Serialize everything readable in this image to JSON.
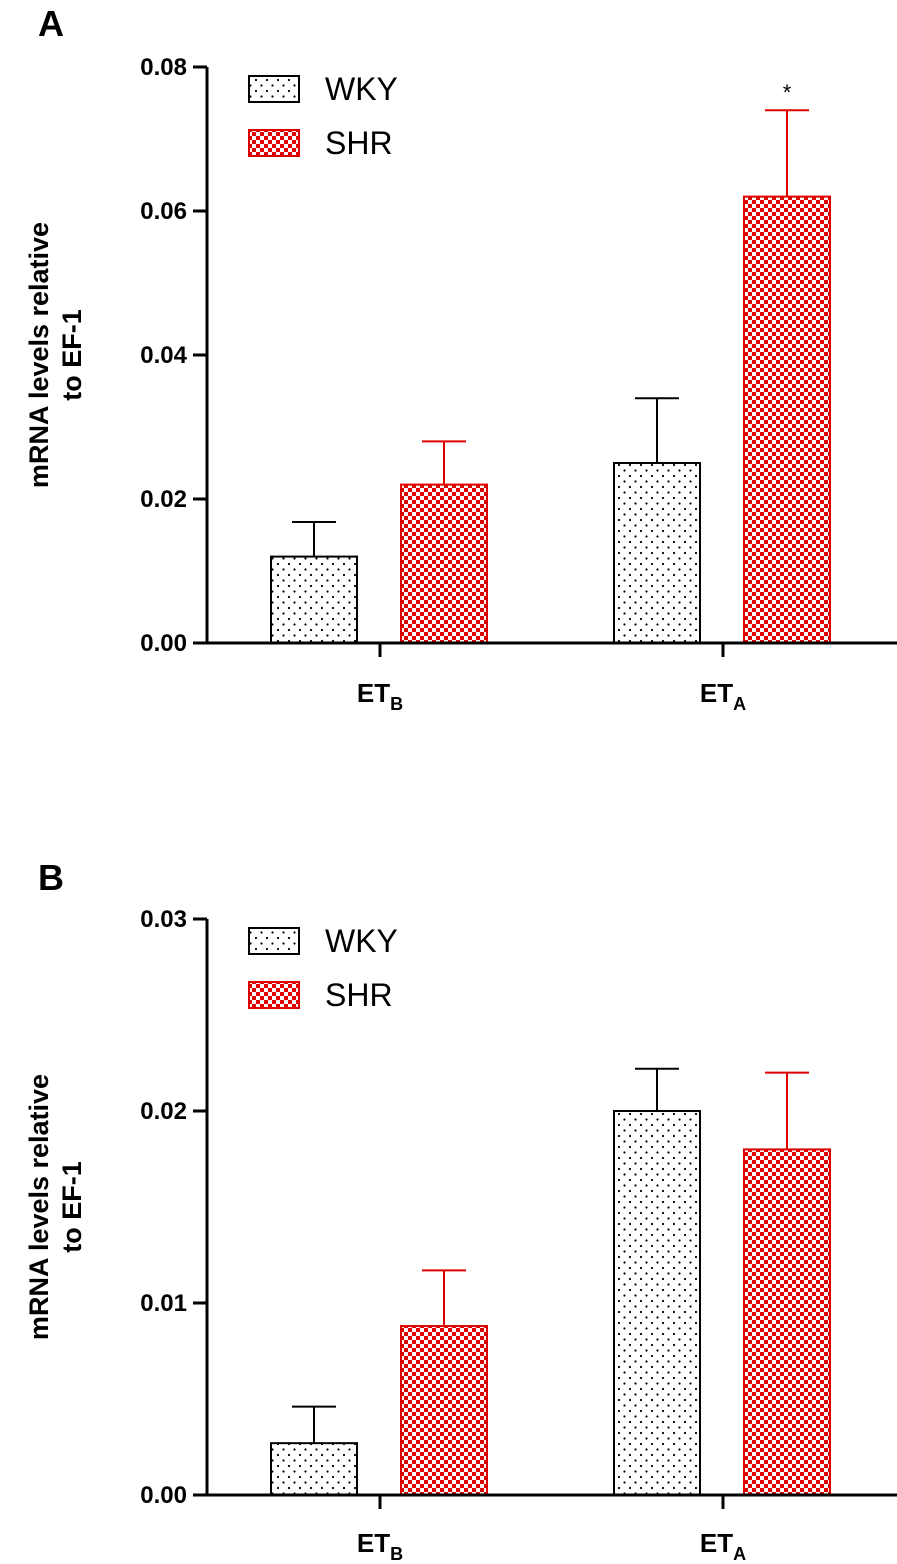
{
  "chart_data": [
    {
      "type": "bar",
      "panel_label": "A",
      "title": "",
      "ylabel": "mRNA levels relative to EF-1",
      "ylabel_lines": [
        "mRNA levels relative",
        "to EF-1"
      ],
      "xlabel": "",
      "ylim": [
        0,
        0.08
      ],
      "yticks": [
        0.0,
        0.02,
        0.04,
        0.06,
        0.08
      ],
      "ytick_labels": [
        "0.00",
        "0.02",
        "0.04",
        "0.06",
        "0.08"
      ],
      "categories": [
        {
          "main": "ET",
          "sub": "B"
        },
        {
          "main": "ET",
          "sub": "A"
        }
      ],
      "series": [
        {
          "name": "WKY",
          "values": [
            0.012,
            0.025
          ],
          "errors": [
            0.0048,
            0.009
          ],
          "color": "#000000",
          "pattern": "dots"
        },
        {
          "name": "SHR",
          "values": [
            0.022,
            0.062
          ],
          "errors": [
            0.006,
            0.012
          ],
          "color": "#e00000",
          "pattern": "checker"
        }
      ],
      "legend": "top-left",
      "grid": false,
      "annotations": [
        {
          "series": 1,
          "category": 1,
          "text": "*"
        }
      ]
    },
    {
      "type": "bar",
      "panel_label": "B",
      "title": "",
      "ylabel": "mRNA levels relative to EF-1",
      "ylabel_lines": [
        "mRNA levels relative",
        "to EF-1"
      ],
      "xlabel": "",
      "ylim": [
        0,
        0.03
      ],
      "yticks": [
        0.0,
        0.01,
        0.02,
        0.03
      ],
      "ytick_labels": [
        "0.00",
        "0.01",
        "0.02",
        "0.03"
      ],
      "categories": [
        {
          "main": "ET",
          "sub": "B"
        },
        {
          "main": "ET",
          "sub": "A"
        }
      ],
      "series": [
        {
          "name": "WKY",
          "values": [
            0.0027,
            0.02
          ],
          "errors": [
            0.0019,
            0.0022
          ],
          "color": "#000000",
          "pattern": "dots"
        },
        {
          "name": "SHR",
          "values": [
            0.0088,
            0.018
          ],
          "errors": [
            0.0029,
            0.004
          ],
          "color": "#e00000",
          "pattern": "checker"
        }
      ],
      "legend": "top-left",
      "grid": false,
      "annotations": []
    }
  ]
}
